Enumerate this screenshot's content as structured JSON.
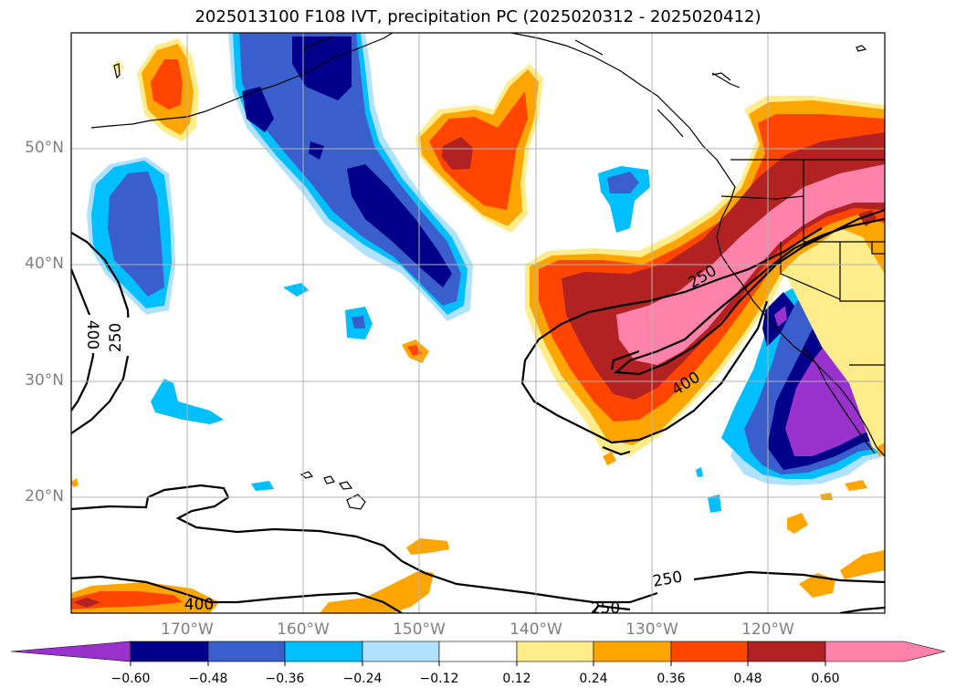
{
  "title": "2025013100 F108 IVT, precipitation PC (2025020312 - 2025020412)",
  "lat_labels": [
    "50°N",
    "40°N",
    "30°N",
    "20°N"
  ],
  "lon_labels": [
    "170°W",
    "160°W",
    "150°W",
    "140°W",
    "130°W",
    "120°W"
  ],
  "colorbar": {
    "ticks": [
      "−0.60",
      "−0.48",
      "−0.36",
      "−0.24",
      "−0.12",
      "0.12",
      "0.24",
      "0.36",
      "0.48",
      "0.60"
    ],
    "colors": [
      "#9932cc",
      "#00008b",
      "#3a5fcd",
      "#00bfff",
      "#b0e2ff",
      "#ffffff",
      "#ffec8b",
      "#ffa500",
      "#ff4500",
      "#b22222",
      "#ff82ab"
    ]
  },
  "contour_labels": [
    "400",
    "250",
    "250",
    "400",
    "250",
    "400",
    "250"
  ],
  "colors": {
    "land_outline": "#000000",
    "grid": "#b3b3b3"
  }
}
